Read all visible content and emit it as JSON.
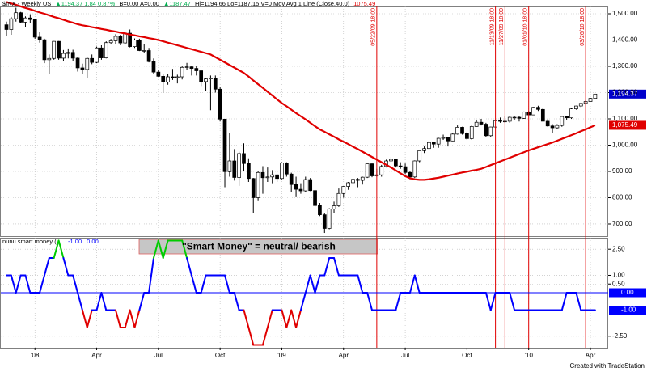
{
  "chart_data": [
    {
      "type": "candlestick",
      "header": [
        {
          "text": "$INX - Weekly US",
          "color": "#000000"
        },
        {
          "text": "▲1194.37 1.84 0.87%",
          "color": "#00b050"
        },
        {
          "text": "B=0.00 A=0.00",
          "color": "#000000"
        },
        {
          "text": "▲1187.47",
          "color": "#00b050"
        },
        {
          "text": "Hi=1194.66 Lo=1187.15 V=0 Mov Avg 1 Line (Close,40,0)",
          "color": "#000000"
        },
        {
          "text": "1075.49",
          "color": "#e00000"
        }
      ],
      "ylim": [
        653.8,
        1527.7
      ],
      "yticks": [
        {
          "value": 700,
          "label": "700.00"
        },
        {
          "value": 800,
          "label": "800.00"
        },
        {
          "value": 900,
          "label": "900.00"
        },
        {
          "value": 1000,
          "label": "1,000.00"
        },
        {
          "value": 1100,
          "label": "1,100.00"
        },
        {
          "value": 1200,
          "label": "1,200.00"
        },
        {
          "value": 1300,
          "label": "1,300.00"
        },
        {
          "value": 1400,
          "label": "1,400.00"
        },
        {
          "value": 1500,
          "label": "1,500.00"
        }
      ],
      "grid": true,
      "up_color": "#ffffff",
      "down_color": "#000000",
      "outline_color": "#000000",
      "ohlc": [
        [
          1458,
          1470,
          1416,
          1440
        ],
        [
          1440,
          1488,
          1420,
          1481
        ],
        [
          1481,
          1523,
          1470,
          1504
        ],
        [
          1504,
          1507,
          1465,
          1468
        ],
        [
          1468,
          1490,
          1450,
          1484
        ],
        [
          1484,
          1498,
          1465,
          1478
        ],
        [
          1478,
          1480,
          1405,
          1411
        ],
        [
          1411,
          1430,
          1390,
          1401
        ],
        [
          1401,
          1405,
          1312,
          1325
        ],
        [
          1325,
          1345,
          1270,
          1330
        ],
        [
          1330,
          1396,
          1325,
          1395
        ],
        [
          1395,
          1396,
          1325,
          1331
        ],
        [
          1331,
          1362,
          1320,
          1349
        ],
        [
          1349,
          1368,
          1330,
          1353
        ],
        [
          1353,
          1363,
          1320,
          1331
        ],
        [
          1331,
          1335,
          1280,
          1294
        ],
        [
          1294,
          1310,
          1270,
          1288
        ],
        [
          1288,
          1333,
          1257,
          1330
        ],
        [
          1330,
          1345,
          1308,
          1315
        ],
        [
          1315,
          1375,
          1312,
          1370
        ],
        [
          1370,
          1380,
          1325,
          1332
        ],
        [
          1332,
          1395,
          1330,
          1390
        ],
        [
          1390,
          1404,
          1383,
          1397
        ],
        [
          1397,
          1422,
          1385,
          1414
        ],
        [
          1414,
          1420,
          1380,
          1389
        ],
        [
          1389,
          1430,
          1385,
          1426
        ],
        [
          1426,
          1440,
          1372,
          1375
        ],
        [
          1375,
          1406,
          1370,
          1400
        ],
        [
          1400,
          1405,
          1358,
          1360
        ],
        [
          1360,
          1385,
          1350,
          1360
        ],
        [
          1360,
          1370,
          1315,
          1318
        ],
        [
          1318,
          1330,
          1270,
          1278
        ],
        [
          1278,
          1285,
          1260,
          1262
        ],
        [
          1262,
          1270,
          1200,
          1240
        ],
        [
          1240,
          1270,
          1230,
          1260
        ],
        [
          1260,
          1290,
          1248,
          1257
        ],
        [
          1257,
          1268,
          1235,
          1260
        ],
        [
          1260,
          1300,
          1250,
          1296
        ],
        [
          1296,
          1313,
          1285,
          1298
        ],
        [
          1298,
          1302,
          1265,
          1292
        ],
        [
          1292,
          1300,
          1265,
          1283
        ],
        [
          1283,
          1285,
          1225,
          1242
        ],
        [
          1242,
          1255,
          1205,
          1252
        ],
        [
          1252,
          1265,
          1133,
          1255
        ],
        [
          1255,
          1265,
          1200,
          1213
        ],
        [
          1213,
          1220,
          1090,
          1099
        ],
        [
          1099,
          1100,
          840,
          899
        ],
        [
          899,
          1045,
          880,
          940
        ],
        [
          940,
          985,
          865,
          877
        ],
        [
          877,
          975,
          845,
          968
        ],
        [
          968,
          1007,
          900,
          930
        ],
        [
          930,
          950,
          860,
          873
        ],
        [
          873,
          875,
          740,
          800
        ],
        [
          800,
          900,
          790,
          896
        ],
        [
          896,
          920,
          815,
          876
        ],
        [
          876,
          915,
          860,
          879
        ],
        [
          879,
          905,
          855,
          887
        ],
        [
          887,
          890,
          860,
          873
        ],
        [
          873,
          935,
          870,
          932
        ],
        [
          932,
          935,
          880,
          890
        ],
        [
          890,
          895,
          820,
          850
        ],
        [
          850,
          880,
          805,
          832
        ],
        [
          832,
          855,
          815,
          826
        ],
        [
          826,
          880,
          820,
          869
        ],
        [
          869,
          875,
          825,
          827
        ],
        [
          827,
          830,
          765,
          770
        ],
        [
          770,
          780,
          730,
          735
        ],
        [
          735,
          740,
          666,
          683
        ],
        [
          683,
          760,
          680,
          757
        ],
        [
          757,
          785,
          740,
          769
        ],
        [
          769,
          835,
          765,
          816
        ],
        [
          816,
          845,
          800,
          843
        ],
        [
          843,
          860,
          830,
          857
        ],
        [
          857,
          875,
          830,
          870
        ],
        [
          870,
          875,
          840,
          866
        ],
        [
          866,
          880,
          850,
          878
        ],
        [
          878,
          930,
          875,
          929
        ],
        [
          929,
          930,
          878,
          883
        ],
        [
          883,
          910,
          880,
          887
        ],
        [
          887,
          925,
          880,
          919
        ],
        [
          919,
          945,
          915,
          940
        ],
        [
          940,
          956,
          930,
          946
        ],
        [
          946,
          948,
          915,
          921
        ],
        [
          921,
          935,
          910,
          918
        ],
        [
          918,
          930,
          890,
          896
        ],
        [
          896,
          900,
          870,
          879
        ],
        [
          879,
          942,
          875,
          940
        ],
        [
          940,
          980,
          935,
          979
        ],
        [
          979,
          995,
          970,
          987
        ],
        [
          987,
          1015,
          985,
          1010
        ],
        [
          1010,
          1012,
          990,
          1004
        ],
        [
          1004,
          1028,
          990,
          1026
        ],
        [
          1026,
          1040,
          1020,
          1029
        ],
        [
          1029,
          1030,
          995,
          1016
        ],
        [
          1016,
          1045,
          1015,
          1042
        ],
        [
          1042,
          1075,
          1040,
          1068
        ],
        [
          1068,
          1070,
          1040,
          1044
        ],
        [
          1044,
          1050,
          1020,
          1025
        ],
        [
          1025,
          1075,
          1020,
          1071
        ],
        [
          1071,
          1095,
          1070,
          1087
        ],
        [
          1087,
          1100,
          1075,
          1080
        ],
        [
          1080,
          1085,
          1030,
          1036
        ],
        [
          1036,
          1070,
          1030,
          1069
        ],
        [
          1069,
          1097,
          1065,
          1093
        ],
        [
          1093,
          1105,
          1085,
          1091
        ],
        [
          1091,
          1110,
          1085,
          1091
        ],
        [
          1091,
          1110,
          1085,
          1106
        ],
        [
          1106,
          1110,
          1095,
          1106
        ],
        [
          1106,
          1110,
          1090,
          1102
        ],
        [
          1102,
          1128,
          1100,
          1126
        ],
        [
          1126,
          1130,
          1114,
          1115
        ],
        [
          1115,
          1145,
          1115,
          1144
        ],
        [
          1144,
          1150,
          1130,
          1136
        ],
        [
          1136,
          1140,
          1090,
          1091
        ],
        [
          1091,
          1098,
          1070,
          1073
        ],
        [
          1073,
          1080,
          1045,
          1066
        ],
        [
          1066,
          1080,
          1060,
          1075
        ],
        [
          1075,
          1110,
          1070,
          1109
        ],
        [
          1109,
          1112,
          1095,
          1104
        ],
        [
          1104,
          1140,
          1100,
          1138
        ],
        [
          1138,
          1150,
          1135,
          1149
        ],
        [
          1149,
          1160,
          1145,
          1159
        ],
        [
          1159,
          1170,
          1155,
          1166
        ],
        [
          1166,
          1180,
          1165,
          1178
        ],
        [
          1178,
          1194.66,
          1176,
          1194.37
        ]
      ],
      "series": [
        {
          "name": "Mov Avg 1 Line (Close,40,0)",
          "color": "#e00000",
          "values": [
            1545,
            1539,
            1534,
            1528,
            1522,
            1517,
            1511,
            1505,
            1500,
            1494,
            1488,
            1483,
            1477,
            1471,
            1466,
            1460,
            1456,
            1453,
            1449,
            1446,
            1442,
            1439,
            1435,
            1432,
            1428,
            1425,
            1421,
            1418,
            1414,
            1411,
            1407,
            1404,
            1400,
            1395,
            1390,
            1385,
            1380,
            1375,
            1370,
            1365,
            1360,
            1355,
            1350,
            1345,
            1335,
            1325,
            1315,
            1305,
            1295,
            1285,
            1275,
            1261,
            1246,
            1232,
            1218,
            1203,
            1189,
            1174,
            1160,
            1148,
            1135,
            1122,
            1110,
            1098,
            1085,
            1072,
            1060,
            1051,
            1041,
            1032,
            1022,
            1013,
            1004,
            994,
            985,
            975,
            965,
            955,
            945,
            935,
            925,
            915,
            904,
            893,
            882,
            874,
            870,
            868,
            868,
            870,
            873,
            876,
            880,
            884,
            888,
            892,
            896,
            899,
            903,
            906,
            910,
            917,
            924,
            931,
            938,
            945,
            952,
            959,
            966,
            973,
            980,
            986,
            992,
            998,
            1004,
            1010,
            1017,
            1024,
            1031,
            1038,
            1045,
            1053,
            1060,
            1068,
            1075.49
          ]
        }
      ],
      "price_boxes": [
        {
          "value": 1194.37,
          "label": "1,194.37",
          "color": "#0000cc"
        },
        {
          "value": 1075.49,
          "label": "1,075.49",
          "color": "#e00000"
        }
      ],
      "event_color": "#e00000",
      "events": [
        {
          "x": 78,
          "label": "05/22/09 18:00"
        },
        {
          "x": 103,
          "label": "11/13/09 18:00"
        },
        {
          "x": 105,
          "label": "11/27/09 18:00"
        },
        {
          "x": 110,
          "label": "01/01/10 18:00"
        },
        {
          "x": 122,
          "label": "03/26/10 18:00"
        }
      ]
    },
    {
      "type": "line",
      "title": "nunu smart money ( ...",
      "annotation": "\"Smart Money\" = neutral/ bearish",
      "categories": [
        null,
        null,
        null,
        null,
        null,
        null,
        "'08",
        null,
        null,
        null,
        null,
        null,
        null,
        null,
        null,
        null,
        null,
        null,
        null,
        "Apr",
        null,
        null,
        null,
        null,
        null,
        null,
        null,
        null,
        null,
        null,
        null,
        null,
        "Jul",
        null,
        null,
        null,
        null,
        null,
        null,
        null,
        null,
        null,
        null,
        null,
        null,
        "Oct",
        null,
        null,
        null,
        null,
        null,
        null,
        null,
        null,
        null,
        null,
        null,
        null,
        "'09",
        null,
        null,
        null,
        null,
        null,
        null,
        null,
        null,
        null,
        null,
        null,
        null,
        "Apr",
        null,
        null,
        null,
        null,
        null,
        null,
        null,
        null,
        null,
        null,
        null,
        null,
        "Jul",
        null,
        null,
        null,
        null,
        null,
        null,
        null,
        null,
        null,
        null,
        null,
        null,
        "Oct",
        null,
        null,
        null,
        null,
        null,
        null,
        null,
        null,
        null,
        null,
        null,
        null,
        "'10",
        null,
        null,
        null,
        null,
        null,
        null,
        null,
        null,
        null,
        null,
        null,
        null,
        "Apr",
        null
      ],
      "ylim": [
        -3.16,
        3.16
      ],
      "yticks": [
        {
          "value": 2.5,
          "label": "2.50"
        },
        {
          "value": 1,
          "label": "1.00"
        },
        {
          "value": 0.5,
          "label": "0.50"
        },
        {
          "value": -2.5,
          "label": "-2.50"
        }
      ],
      "grid": true,
      "level_colors": {
        "3": "#00cc00",
        "-2": "#e00000",
        "-3": "#e00000"
      },
      "plots": [
        {
          "color": "#0000ff",
          "last": {
            "value": -1,
            "label": "-1.00"
          },
          "values": [
            1,
            1,
            0,
            1,
            1,
            0,
            0,
            0,
            1,
            2,
            2,
            3,
            2,
            1,
            1,
            0,
            -1,
            -2,
            -1,
            -1,
            0,
            -1,
            -1,
            -1,
            -2,
            -2,
            -1,
            -2,
            -1,
            0,
            0,
            2,
            3,
            2,
            3,
            3,
            3,
            3,
            2,
            1,
            0,
            0,
            1,
            1,
            1,
            1,
            1,
            0,
            0,
            -1,
            -1,
            -2,
            -3,
            -3,
            -3,
            -2,
            -1,
            -1,
            -1,
            -2,
            -1,
            -2,
            -1,
            0,
            1,
            0,
            1,
            1,
            2,
            2,
            1,
            1,
            1,
            1,
            1,
            0,
            0,
            -1,
            -1,
            -1,
            -1,
            -1,
            -1,
            0,
            0,
            0,
            1,
            0,
            0,
            0,
            0,
            0,
            0,
            0,
            0,
            0,
            0,
            0,
            0,
            0,
            0,
            0,
            -1,
            0,
            0,
            0,
            0,
            -1,
            -1,
            -1,
            -1,
            -1,
            -1,
            -1,
            -1,
            -1,
            -1,
            -1,
            0,
            0,
            0,
            -1,
            -1,
            -1,
            -1
          ]
        },
        {
          "color": "#0000ff",
          "value": 0,
          "last": {
            "value": 0,
            "label": "0.00"
          }
        }
      ]
    }
  ],
  "footer": "Created with TradeStation"
}
